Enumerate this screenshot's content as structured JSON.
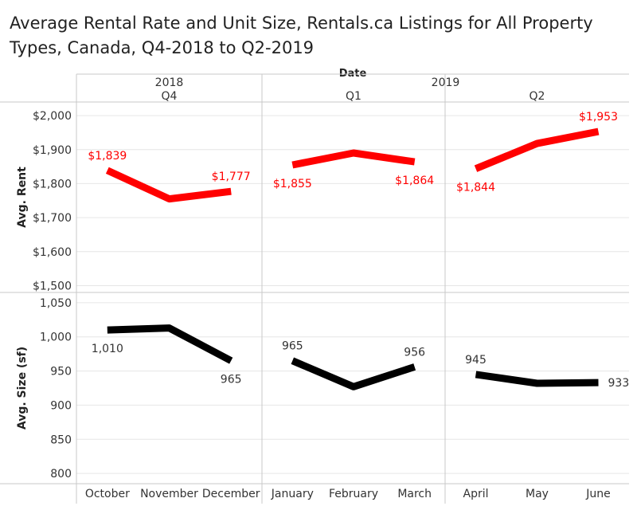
{
  "title": "Average Rental Rate and Unit Size, Rentals.ca Listings for All Property Types, Canada, Q4-2018 to Q2-2019",
  "colors": {
    "rent": "#ff0000",
    "size": "#000000",
    "grid": "#e6e6e6",
    "divider": "#c8c8c8",
    "text": "#333333"
  },
  "chart_data": {
    "type": "line",
    "header_title": "Date",
    "years": [
      {
        "label": "2018",
        "quarters": [
          "Q4"
        ]
      },
      {
        "label": "2019",
        "quarters": [
          "Q1",
          "Q2"
        ]
      }
    ],
    "quarters": [
      {
        "label": "Q4",
        "year": "2018",
        "months": [
          "October",
          "November",
          "December"
        ]
      },
      {
        "label": "Q1",
        "year": "2019",
        "months": [
          "January",
          "February",
          "March"
        ]
      },
      {
        "label": "Q2",
        "year": "2019",
        "months": [
          "April",
          "May",
          "June"
        ]
      }
    ],
    "categories": [
      "October",
      "November",
      "December",
      "January",
      "February",
      "March",
      "April",
      "May",
      "June"
    ],
    "series": [
      {
        "name": "Avg. Rent",
        "ylabel": "Avg. Rent",
        "color": "#ff0000",
        "ylim": [
          1480,
          2040
        ],
        "ticks": [
          1500,
          1600,
          1700,
          1800,
          1900,
          2000
        ],
        "tick_labels": [
          "$1,500",
          "$1,600",
          "$1,700",
          "$1,800",
          "$1,900",
          "$2,000"
        ],
        "values": [
          1839,
          1755,
          1777,
          1855,
          1890,
          1864,
          1844,
          1918,
          1953
        ],
        "data_labels": [
          {
            "index": 0,
            "text": "$1,839",
            "position": "above"
          },
          {
            "index": 2,
            "text": "$1,777",
            "position": "above"
          },
          {
            "index": 3,
            "text": "$1,855",
            "position": "below"
          },
          {
            "index": 5,
            "text": "$1,864",
            "position": "below"
          },
          {
            "index": 6,
            "text": "$1,844",
            "position": "below"
          },
          {
            "index": 8,
            "text": "$1,953",
            "position": "above"
          }
        ]
      },
      {
        "name": "Avg. Size (sf)",
        "ylabel": "Avg. Size (sf)",
        "color": "#000000",
        "ylim": [
          785,
          1065
        ],
        "ticks": [
          800,
          850,
          900,
          950,
          1000,
          1050
        ],
        "tick_labels": [
          "800",
          "850",
          "900",
          "950",
          "1,000",
          "1,050"
        ],
        "values": [
          1010,
          1013,
          965,
          965,
          927,
          956,
          945,
          932,
          933
        ],
        "data_labels": [
          {
            "index": 0,
            "text": "1,010",
            "position": "below"
          },
          {
            "index": 2,
            "text": "965",
            "position": "below"
          },
          {
            "index": 3,
            "text": "965",
            "position": "above"
          },
          {
            "index": 5,
            "text": "956",
            "position": "above"
          },
          {
            "index": 6,
            "text": "945",
            "position": "above"
          },
          {
            "index": 8,
            "text": "933",
            "position": "right"
          }
        ]
      }
    ]
  }
}
